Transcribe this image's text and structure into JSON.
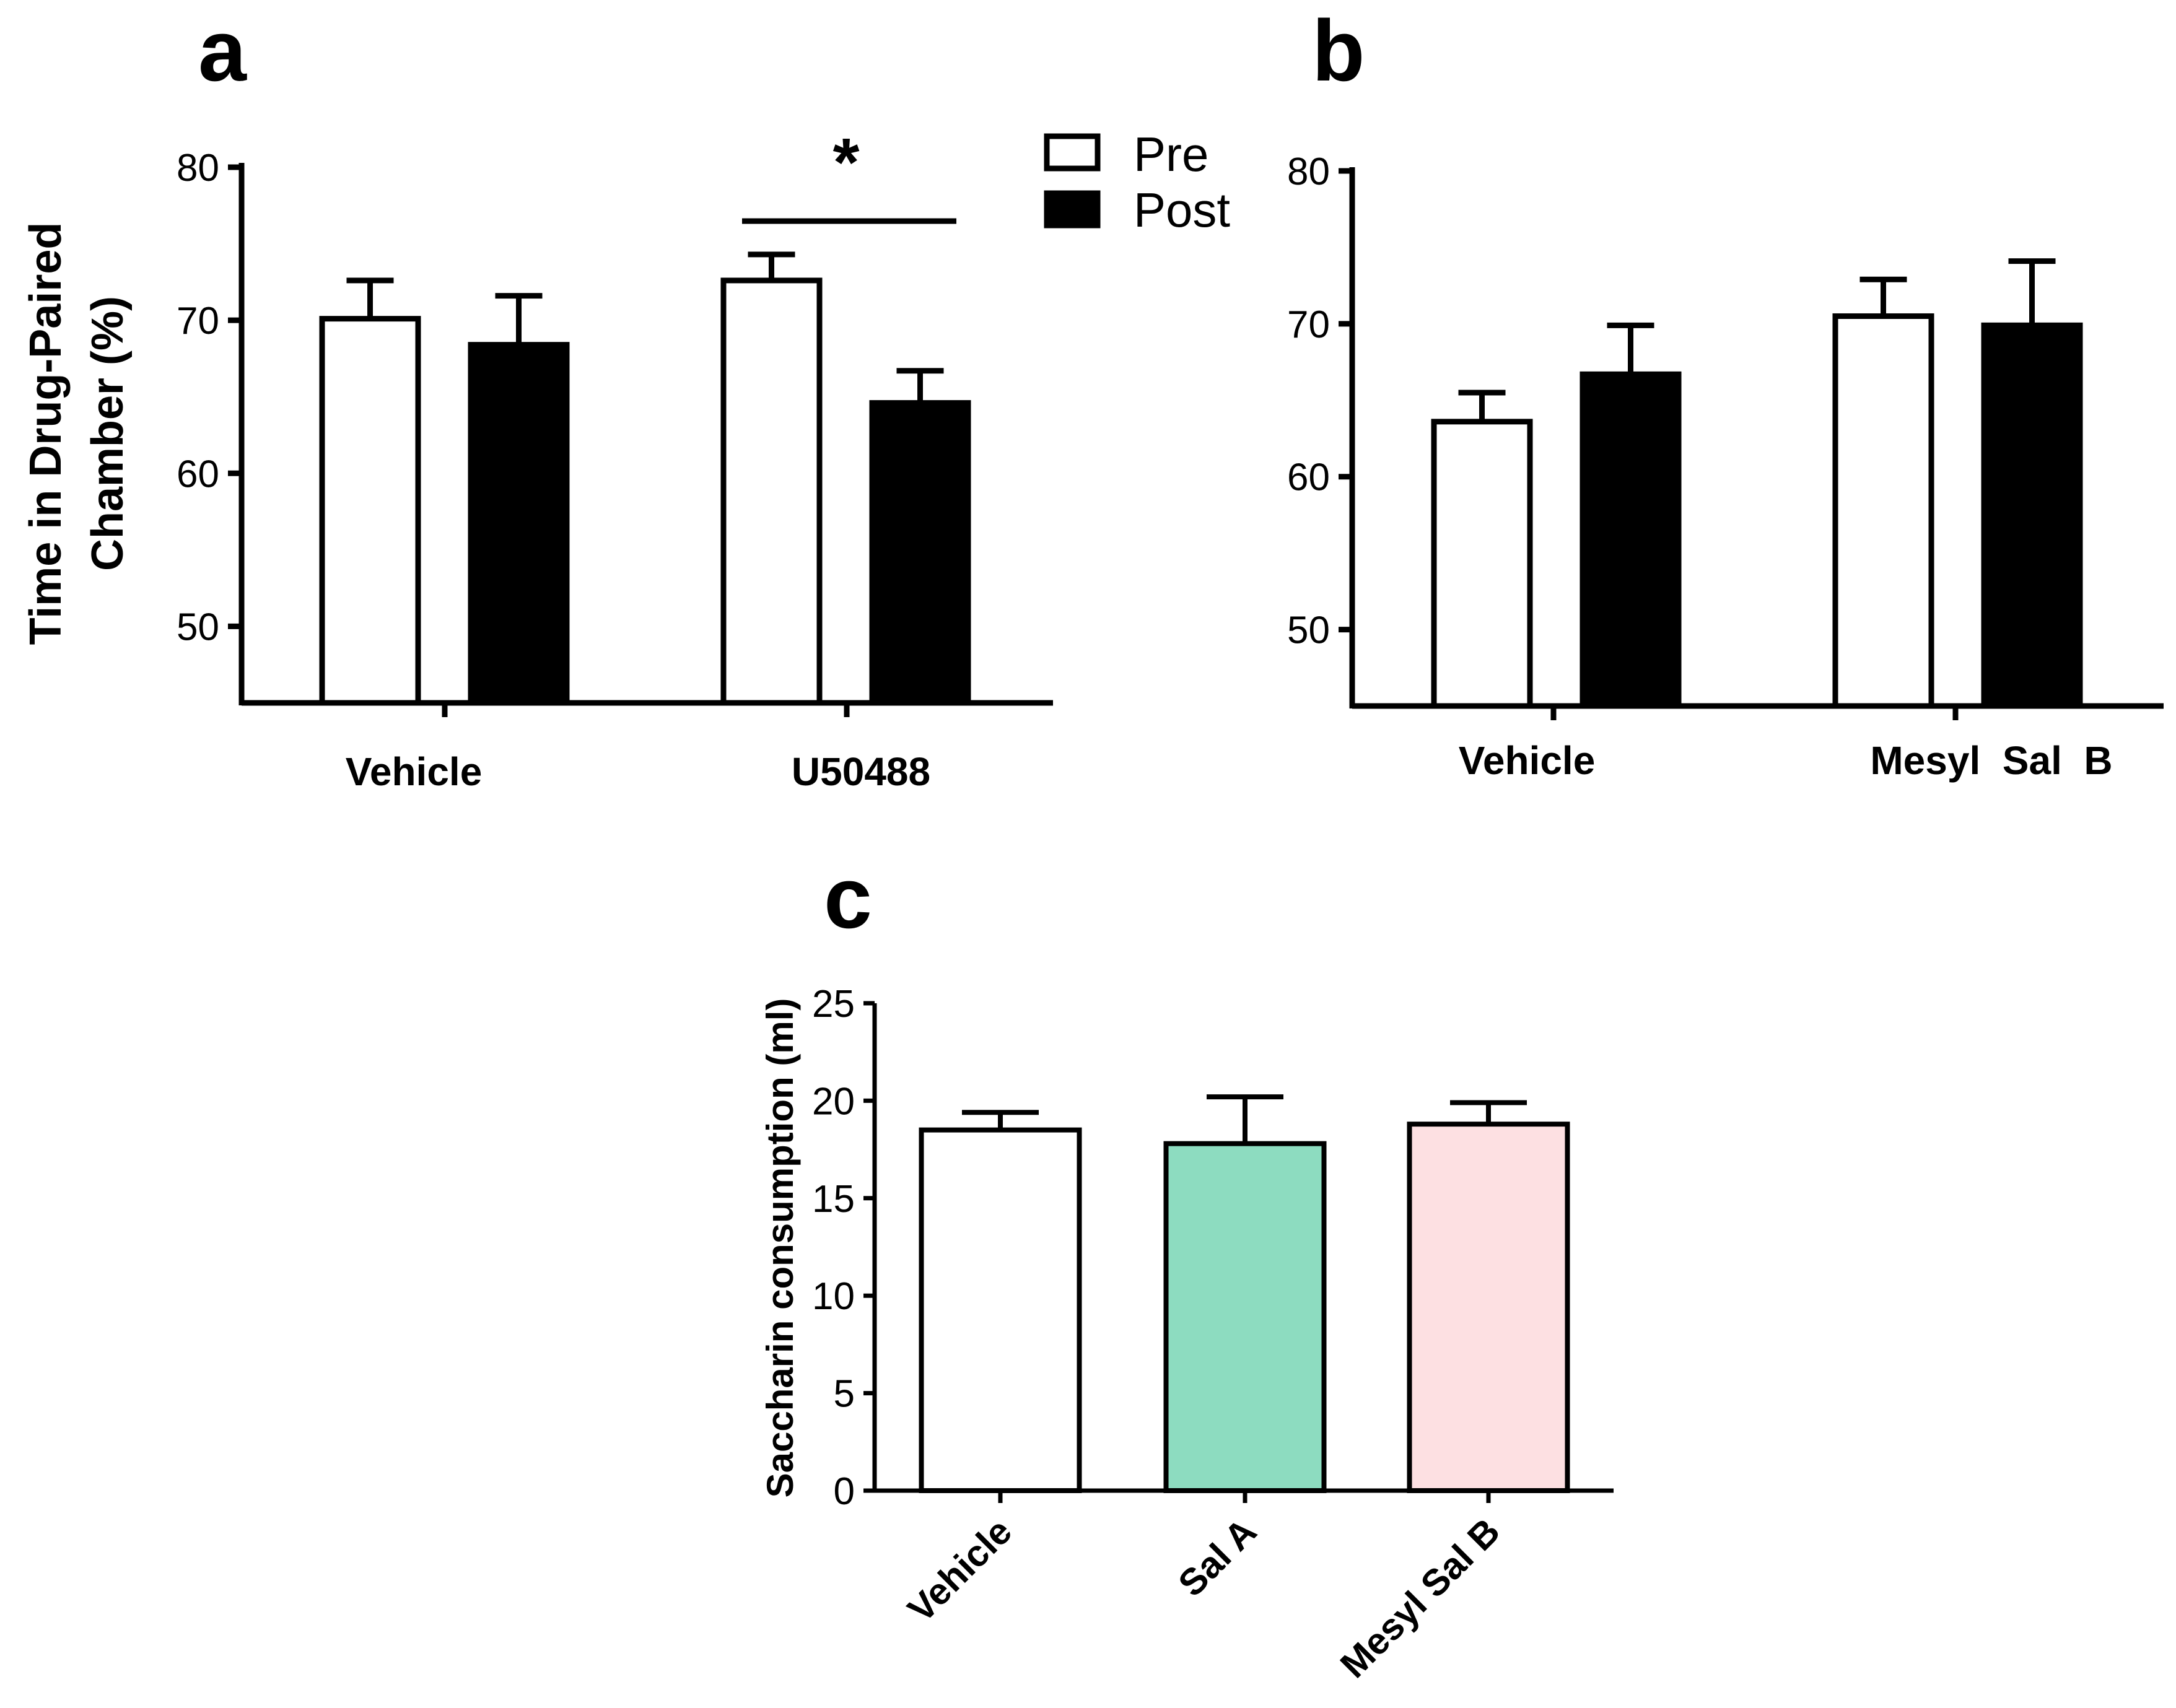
{
  "chart_data": [
    {
      "panel": "a",
      "type": "bar",
      "categories": [
        "Vehicle",
        "U50488"
      ],
      "series": [
        {
          "name": "Pre",
          "values": [
            70.1,
            72.6
          ],
          "errors": [
            2.5,
            1.7
          ],
          "color": "#ffffff"
        },
        {
          "name": "Post",
          "values": [
            68.4,
            64.6
          ],
          "errors": [
            3.2,
            2.1
          ],
          "color": "#000000"
        }
      ],
      "ylabel_lines": [
        "Time in Drug-Paired",
        "Chamber  (%)"
      ],
      "ylim": [
        45,
        80
      ],
      "yticks": [
        50,
        60,
        70,
        80
      ],
      "legend": {
        "entries": [
          "Pre",
          "Post"
        ],
        "position": "top-right"
      },
      "significance": {
        "category": "U50488",
        "label": "*"
      }
    },
    {
      "panel": "b",
      "type": "bar",
      "categories": [
        "Vehicle",
        "Mesyl  Sal  B"
      ],
      "series": [
        {
          "name": "Pre",
          "values": [
            63.6,
            70.5
          ],
          "errors": [
            1.9,
            2.4
          ],
          "color": "#ffffff"
        },
        {
          "name": "Post",
          "values": [
            66.7,
            69.9
          ],
          "errors": [
            3.2,
            4.2
          ],
          "color": "#000000"
        }
      ],
      "ylim": [
        45,
        80
      ],
      "yticks": [
        50,
        60,
        70,
        80
      ]
    },
    {
      "panel": "c",
      "type": "bar",
      "categories": [
        "Vehicle",
        "Sal A",
        "Mesyl Sal B"
      ],
      "values": [
        18.5,
        17.8,
        18.8
      ],
      "errors": [
        0.9,
        2.4,
        1.1
      ],
      "colors": [
        "#ffffff",
        "#8ddcc0",
        "#fde0e2"
      ],
      "ylabel": "Saccharin consumption (ml)",
      "ylim": [
        0,
        25
      ],
      "yticks": [
        0,
        5,
        10,
        15,
        20,
        25
      ]
    }
  ]
}
